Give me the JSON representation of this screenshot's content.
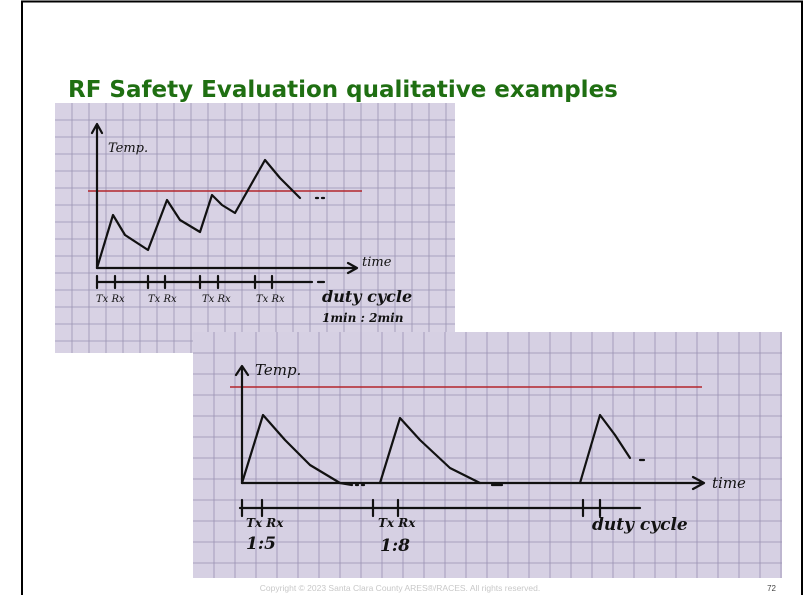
{
  "slide": {
    "title": "RF Safety Evaluation qualitative examples",
    "sketch_1": {
      "y_label": "Temp.",
      "x_label": "time",
      "phase_labels": [
        "Tx Rx",
        "Tx Rx",
        "Tx Rx",
        "Tx Rx"
      ],
      "note": "duty cycle",
      "ratio": "1min : 2min"
    },
    "sketch_2": {
      "y_label": "Temp.",
      "x_label": "time",
      "phase_labels": [
        "Tx Rx",
        "Tx Rx"
      ],
      "ratios": [
        "1:5",
        "1:8"
      ],
      "note": "duty cycle"
    },
    "footer": "Copyright © 2023 Santa Clara County ARES®/RACES.  All rights reserved.",
    "page_number": "72"
  }
}
